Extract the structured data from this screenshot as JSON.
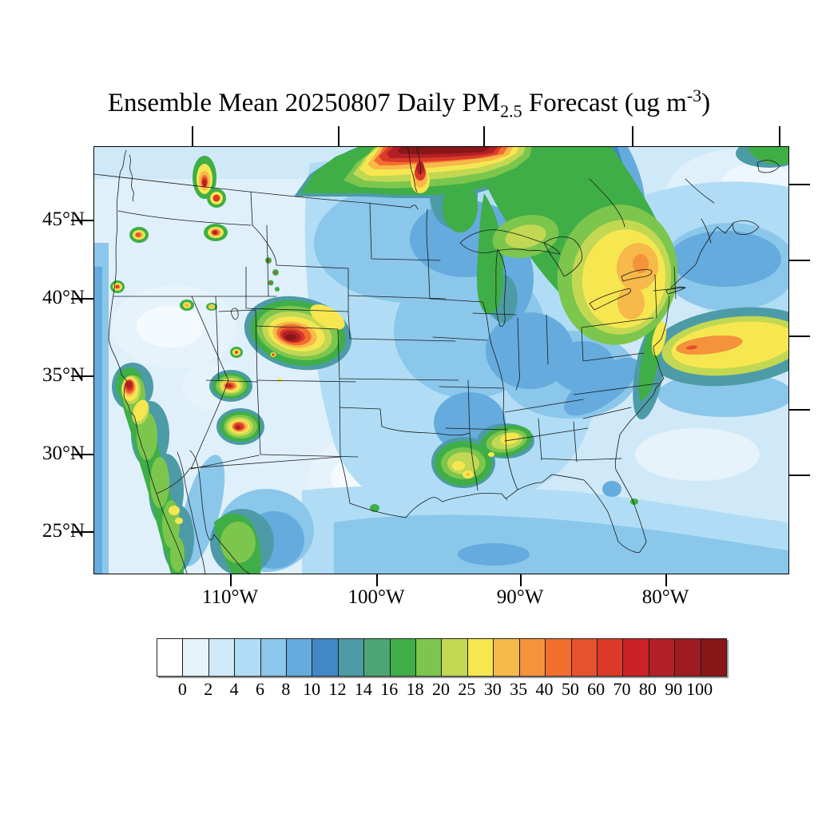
{
  "title": {
    "part1": "Ensemble Mean 20250807 Daily PM",
    "subscript": "2.5",
    "part2": " Forecast (ug m",
    "superscript": "-3",
    "part3": ")"
  },
  "axes": {
    "lat_labels": [
      "45°N",
      "40°N",
      "35°N",
      "30°N",
      "25°N"
    ],
    "lon_labels": [
      "110°W",
      "100°W",
      "90°W",
      "80°W"
    ]
  },
  "colorbar": {
    "tick_labels": [
      "0",
      "2",
      "4",
      "6",
      "8",
      "10",
      "12",
      "14",
      "16",
      "18",
      "20",
      "25",
      "30",
      "35",
      "40",
      "50",
      "60",
      "70",
      "80",
      "90",
      "100"
    ],
    "cell_colors": [
      "#ffffff",
      "#e6f3fb",
      "#d0e9f8",
      "#b0ddf5",
      "#8ac7ea",
      "#65abdd",
      "#4189c6",
      "#4d9ba6",
      "#4ca674",
      "#3fae46",
      "#7cc64d",
      "#c2d853",
      "#f6e751",
      "#f6b94a",
      "#f4933c",
      "#f26e2e",
      "#e5522c",
      "#db3a28",
      "#cc2127",
      "#b21f26",
      "#9e1b21",
      "#891619"
    ]
  },
  "chart_data": {
    "type": "heatmap",
    "subtype": "filled-contour-geographic-map",
    "title": "Ensemble Mean 20250807 Daily PM2.5 Forecast (ug m-3)",
    "variable": "PM2.5 daily mean concentration",
    "units": "ug m-3",
    "forecast_date": "20250807",
    "statistic": "Ensemble Mean",
    "region": "Continental United States with southern Canada and northern Mexico",
    "lat_ticks_deg_N": [
      45,
      40,
      35,
      30,
      25
    ],
    "lon_ticks_deg_W": [
      110,
      100,
      90,
      80
    ],
    "contour_levels": [
      0,
      2,
      4,
      6,
      8,
      10,
      12,
      14,
      16,
      18,
      20,
      25,
      30,
      35,
      40,
      50,
      60,
      70,
      80,
      90,
      100
    ],
    "legend_position": "bottom",
    "grid": false,
    "features": [
      {
        "area": "Southern Manitoba/Saskatchewan smoke plume (top center of map)",
        "approx_peak": ">100"
      },
      {
        "area": "Northwest Montana / Idaho panhandle hotspots (three cores)",
        "approx_peak": "60-100"
      },
      {
        "area": "Central Oregon hotspot",
        "approx_peak": "40-60"
      },
      {
        "area": "Northern California coastal hotspot",
        "approx_peak": "40-60"
      },
      {
        "area": "Central Nevada twin spots",
        "approx_peak": "30-50"
      },
      {
        "area": "Western Colorado / eastern Utah large fire complex",
        "approx_peak": ">100"
      },
      {
        "area": "Northern and central Arizona hotspots",
        "approx_peak": "60-100"
      },
      {
        "area": "California Central Valley band, dark-red core near San Francisco Bay",
        "approx_peak": "80-100 core, 20-35 along valley"
      },
      {
        "area": "Baja California / western Mexico terrain bands",
        "approx_peak": "18-30"
      },
      {
        "area": "Louisiana / Arkansas / Mississippi patches",
        "approx_peak": "25-35"
      },
      {
        "area": "Great Lakes / Ontario broad haze",
        "approx_peak": "16-25"
      },
      {
        "area": "New York / Pennsylvania plume",
        "approx_peak": "35-50"
      },
      {
        "area": "Western Atlantic offshore plume east of Virginia/Carolinas",
        "approx_peak": "30-50"
      },
      {
        "area": "Central plains and Midwest background",
        "approx_peak": "6-12"
      },
      {
        "area": "Interior western basins, west Texas, southeast U.S. background",
        "approx_peak": "0-6"
      }
    ]
  }
}
